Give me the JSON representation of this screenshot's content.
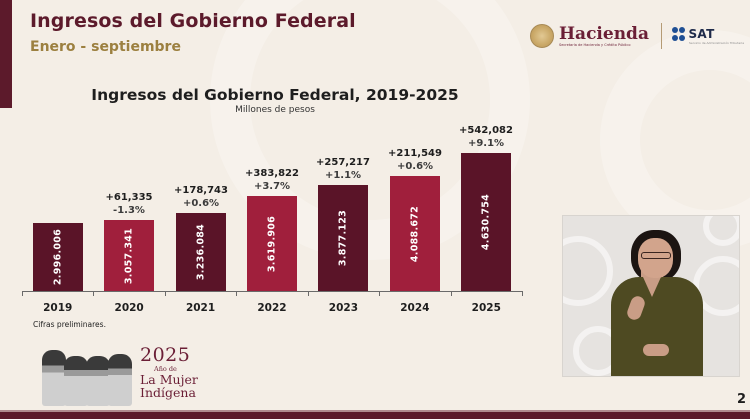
{
  "slide": {
    "title": "Ingresos del Gobierno Federal",
    "subtitle": "Enero - septiembre",
    "page_number": "2",
    "footnote": "Cifras preliminares.",
    "colors": {
      "brand_maroon": "#5c1a2b",
      "bar_dark": "#5a1428",
      "bar_red": "#a01f3c",
      "subtitle_gold": "#9c8040",
      "background": "#f4eee6"
    }
  },
  "logos": {
    "hacienda": {
      "name": "Hacienda",
      "subtitle": "Secretaría de Hacienda y Crédito Público",
      "icon": "national-seal-icon"
    },
    "sat": {
      "name": "SAT",
      "subtitle": "Servicio de Administración Tributaria",
      "icon": "sat-dots-icon"
    }
  },
  "year_logo": {
    "year": "2025",
    "line1": "Año de",
    "line2": "La Mujer",
    "line3": "Indígena"
  },
  "interpreter": {
    "label": "sign-language-interpreter-video"
  },
  "chart_data": {
    "type": "bar",
    "title": "Ingresos del Gobierno Federal, 2019-2025",
    "subtitle": "Millones de pesos",
    "xlabel": "",
    "ylabel": "",
    "categories": [
      "2019",
      "2020",
      "2021",
      "2022",
      "2023",
      "2024",
      "2025"
    ],
    "values": [
      2996006,
      3057341,
      3236084,
      3619906,
      3877123,
      4088672,
      4630754
    ],
    "value_labels": [
      "2.996.006",
      "3.057.341",
      "3.236.084",
      "3.619.906",
      "3.877.123",
      "4.088.672",
      "4.630.754"
    ],
    "change_abs": [
      null,
      "+61,335",
      "+178,743",
      "+383,822",
      "+257,217",
      "+211,549",
      "+542,082"
    ],
    "change_pct": [
      null,
      "-1.3%",
      "+0.6%",
      "+3.7%",
      "+1.1%",
      "+0.6%",
      "+9.1%"
    ],
    "bar_colors": [
      "#5a1428",
      "#a01f3c",
      "#5a1428",
      "#a01f3c",
      "#5a1428",
      "#a01f3c",
      "#5a1428"
    ],
    "grid": false,
    "legend": "none",
    "note": "Cifras preliminares."
  }
}
